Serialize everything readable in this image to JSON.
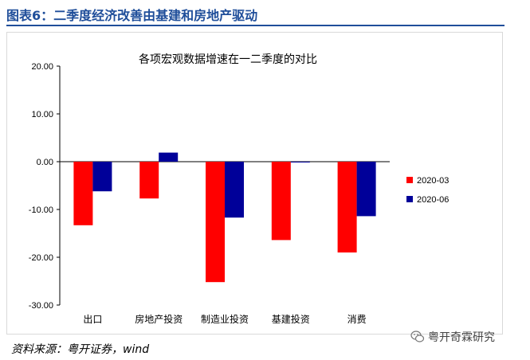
{
  "figure": {
    "title": "图表6：二季度经济改善由基建和房地产驱动",
    "source": "资料来源：粤开证券，wind",
    "watermark": "粤开奇霖研究",
    "watermark_icon": "wechat-icon"
  },
  "colors": {
    "title": "#1f4e9a",
    "series_2020_03": "#ff0000",
    "series_2020_06": "#000099"
  },
  "chart_data": {
    "type": "bar",
    "title": "各项宏观数据增速在一二季度的对比",
    "categories": [
      "出口",
      "房地产投资",
      "制造业投资",
      "基建投资",
      "消费"
    ],
    "series": [
      {
        "name": "2020-03",
        "values": [
          -13.3,
          -7.7,
          -25.2,
          -16.4,
          -19.0
        ]
      },
      {
        "name": "2020-06",
        "values": [
          -6.2,
          1.9,
          -11.7,
          -0.1,
          -11.4
        ]
      }
    ],
    "ylim": [
      -30,
      20
    ],
    "yticks": [
      "20.00",
      "10.00",
      "0.00",
      "-10.00",
      "-20.00",
      "-30.00"
    ],
    "ytick_values": [
      20,
      10,
      0,
      -10,
      -20,
      -30
    ],
    "xlabel": "",
    "ylabel": "",
    "legend": "right",
    "grid": false
  }
}
